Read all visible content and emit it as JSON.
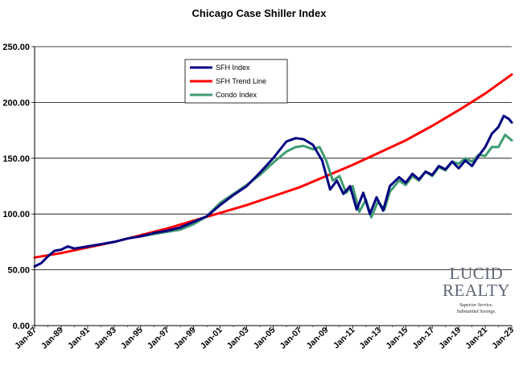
{
  "chart_data": {
    "type": "line",
    "title": "Chicago Case Shiller Index",
    "xlabel": "",
    "ylabel": "",
    "ylim": [
      0,
      250
    ],
    "xlim": [
      "Jan-87",
      "Jan-23"
    ],
    "grid": "horizontal",
    "legend_position": "top-left (inside plot)",
    "y_tick_labels": [
      "0.00",
      "50.00",
      "100.00",
      "150.00",
      "200.00",
      "250.00"
    ],
    "x_tick_labels": [
      "Jan-87",
      "Jan-89",
      "Jan-91",
      "Jan-93",
      "Jan-95",
      "Jan-97",
      "Jan-99",
      "Jan-01",
      "Jan-03",
      "Jan-05",
      "Jan-07",
      "Jan-09",
      "Jan-11",
      "Jan-13",
      "Jan-15",
      "Jan-17",
      "Jan-19",
      "Jan-21",
      "Jan-23"
    ],
    "series": [
      {
        "name": "SFH Index",
        "color": "#000080",
        "points": [
          [
            1987.0,
            53
          ],
          [
            1987.5,
            56
          ],
          [
            1988.0,
            62
          ],
          [
            1988.5,
            67
          ],
          [
            1989.0,
            68
          ],
          [
            1989.5,
            71
          ],
          [
            1990.0,
            69
          ],
          [
            1990.5,
            70
          ],
          [
            1991.0,
            71
          ],
          [
            1992.0,
            73
          ],
          [
            1993.0,
            75
          ],
          [
            1994.0,
            78
          ],
          [
            1995.0,
            80
          ],
          [
            1996.0,
            83
          ],
          [
            1997.0,
            85
          ],
          [
            1998.0,
            88
          ],
          [
            1999.0,
            93
          ],
          [
            2000.0,
            98
          ],
          [
            2001.0,
            108
          ],
          [
            2002.0,
            117
          ],
          [
            2003.0,
            125
          ],
          [
            2004.0,
            137
          ],
          [
            2005.0,
            150
          ],
          [
            2006.0,
            165
          ],
          [
            2006.7,
            168
          ],
          [
            2007.3,
            167
          ],
          [
            2008.0,
            162
          ],
          [
            2008.7,
            148
          ],
          [
            2009.3,
            122
          ],
          [
            2009.8,
            130
          ],
          [
            2010.3,
            118
          ],
          [
            2010.8,
            125
          ],
          [
            2011.3,
            104
          ],
          [
            2011.8,
            119
          ],
          [
            2012.3,
            100
          ],
          [
            2012.8,
            115
          ],
          [
            2013.3,
            103
          ],
          [
            2013.8,
            125
          ],
          [
            2014.5,
            133
          ],
          [
            2015.0,
            128
          ],
          [
            2015.5,
            136
          ],
          [
            2016.0,
            131
          ],
          [
            2016.5,
            138
          ],
          [
            2017.0,
            135
          ],
          [
            2017.5,
            143
          ],
          [
            2018.0,
            140
          ],
          [
            2018.5,
            147
          ],
          [
            2019.0,
            141
          ],
          [
            2019.5,
            148
          ],
          [
            2020.0,
            143
          ],
          [
            2020.5,
            152
          ],
          [
            2021.0,
            160
          ],
          [
            2021.5,
            172
          ],
          [
            2022.0,
            178
          ],
          [
            2022.4,
            188
          ],
          [
            2022.8,
            185
          ],
          [
            2023.0,
            182
          ]
        ]
      },
      {
        "name": "SFH Trend Line",
        "color": "#ff0000",
        "points": [
          [
            1987,
            61
          ],
          [
            1989,
            65
          ],
          [
            1991,
            70
          ],
          [
            1993,
            75
          ],
          [
            1995,
            81
          ],
          [
            1997,
            87
          ],
          [
            1999,
            94
          ],
          [
            2001,
            101
          ],
          [
            2003,
            108
          ],
          [
            2005,
            116
          ],
          [
            2007,
            124
          ],
          [
            2009,
            134
          ],
          [
            2011,
            144
          ],
          [
            2013,
            155
          ],
          [
            2015,
            166
          ],
          [
            2017,
            179
          ],
          [
            2019,
            193
          ],
          [
            2021,
            208
          ],
          [
            2023,
            225
          ]
        ]
      },
      {
        "name": "Condo Index",
        "color": "#3f9b70",
        "points": [
          [
            1995.0,
            80
          ],
          [
            1996.0,
            82
          ],
          [
            1997.0,
            84
          ],
          [
            1998.0,
            86
          ],
          [
            1999.0,
            91
          ],
          [
            2000.0,
            98
          ],
          [
            2001.0,
            110
          ],
          [
            2002.0,
            118
          ],
          [
            2003.0,
            126
          ],
          [
            2004.0,
            135
          ],
          [
            2005.0,
            146
          ],
          [
            2006.0,
            156
          ],
          [
            2006.7,
            160
          ],
          [
            2007.3,
            161
          ],
          [
            2008.0,
            158
          ],
          [
            2008.5,
            160
          ],
          [
            2009.0,
            148
          ],
          [
            2009.5,
            130
          ],
          [
            2010.0,
            134
          ],
          [
            2010.5,
            119
          ],
          [
            2011.0,
            125
          ],
          [
            2011.5,
            102
          ],
          [
            2012.0,
            113
          ],
          [
            2012.4,
            97
          ],
          [
            2012.9,
            111
          ],
          [
            2013.4,
            104
          ],
          [
            2013.8,
            120
          ],
          [
            2014.5,
            130
          ],
          [
            2015.0,
            126
          ],
          [
            2015.5,
            134
          ],
          [
            2016.0,
            130
          ],
          [
            2016.5,
            138
          ],
          [
            2017.0,
            134
          ],
          [
            2017.5,
            142
          ],
          [
            2018.0,
            139
          ],
          [
            2018.5,
            147
          ],
          [
            2019.0,
            145
          ],
          [
            2019.5,
            150
          ],
          [
            2020.0,
            147
          ],
          [
            2020.5,
            153
          ],
          [
            2021.0,
            152
          ],
          [
            2021.5,
            160
          ],
          [
            2022.0,
            160
          ],
          [
            2022.5,
            171
          ],
          [
            2023.0,
            166
          ]
        ]
      }
    ]
  },
  "logo": {
    "name": "LUCID",
    "name_line2": "REALTY",
    "tagline_line1": "Superior Service.",
    "tagline_line2": "Substantial Savings."
  }
}
